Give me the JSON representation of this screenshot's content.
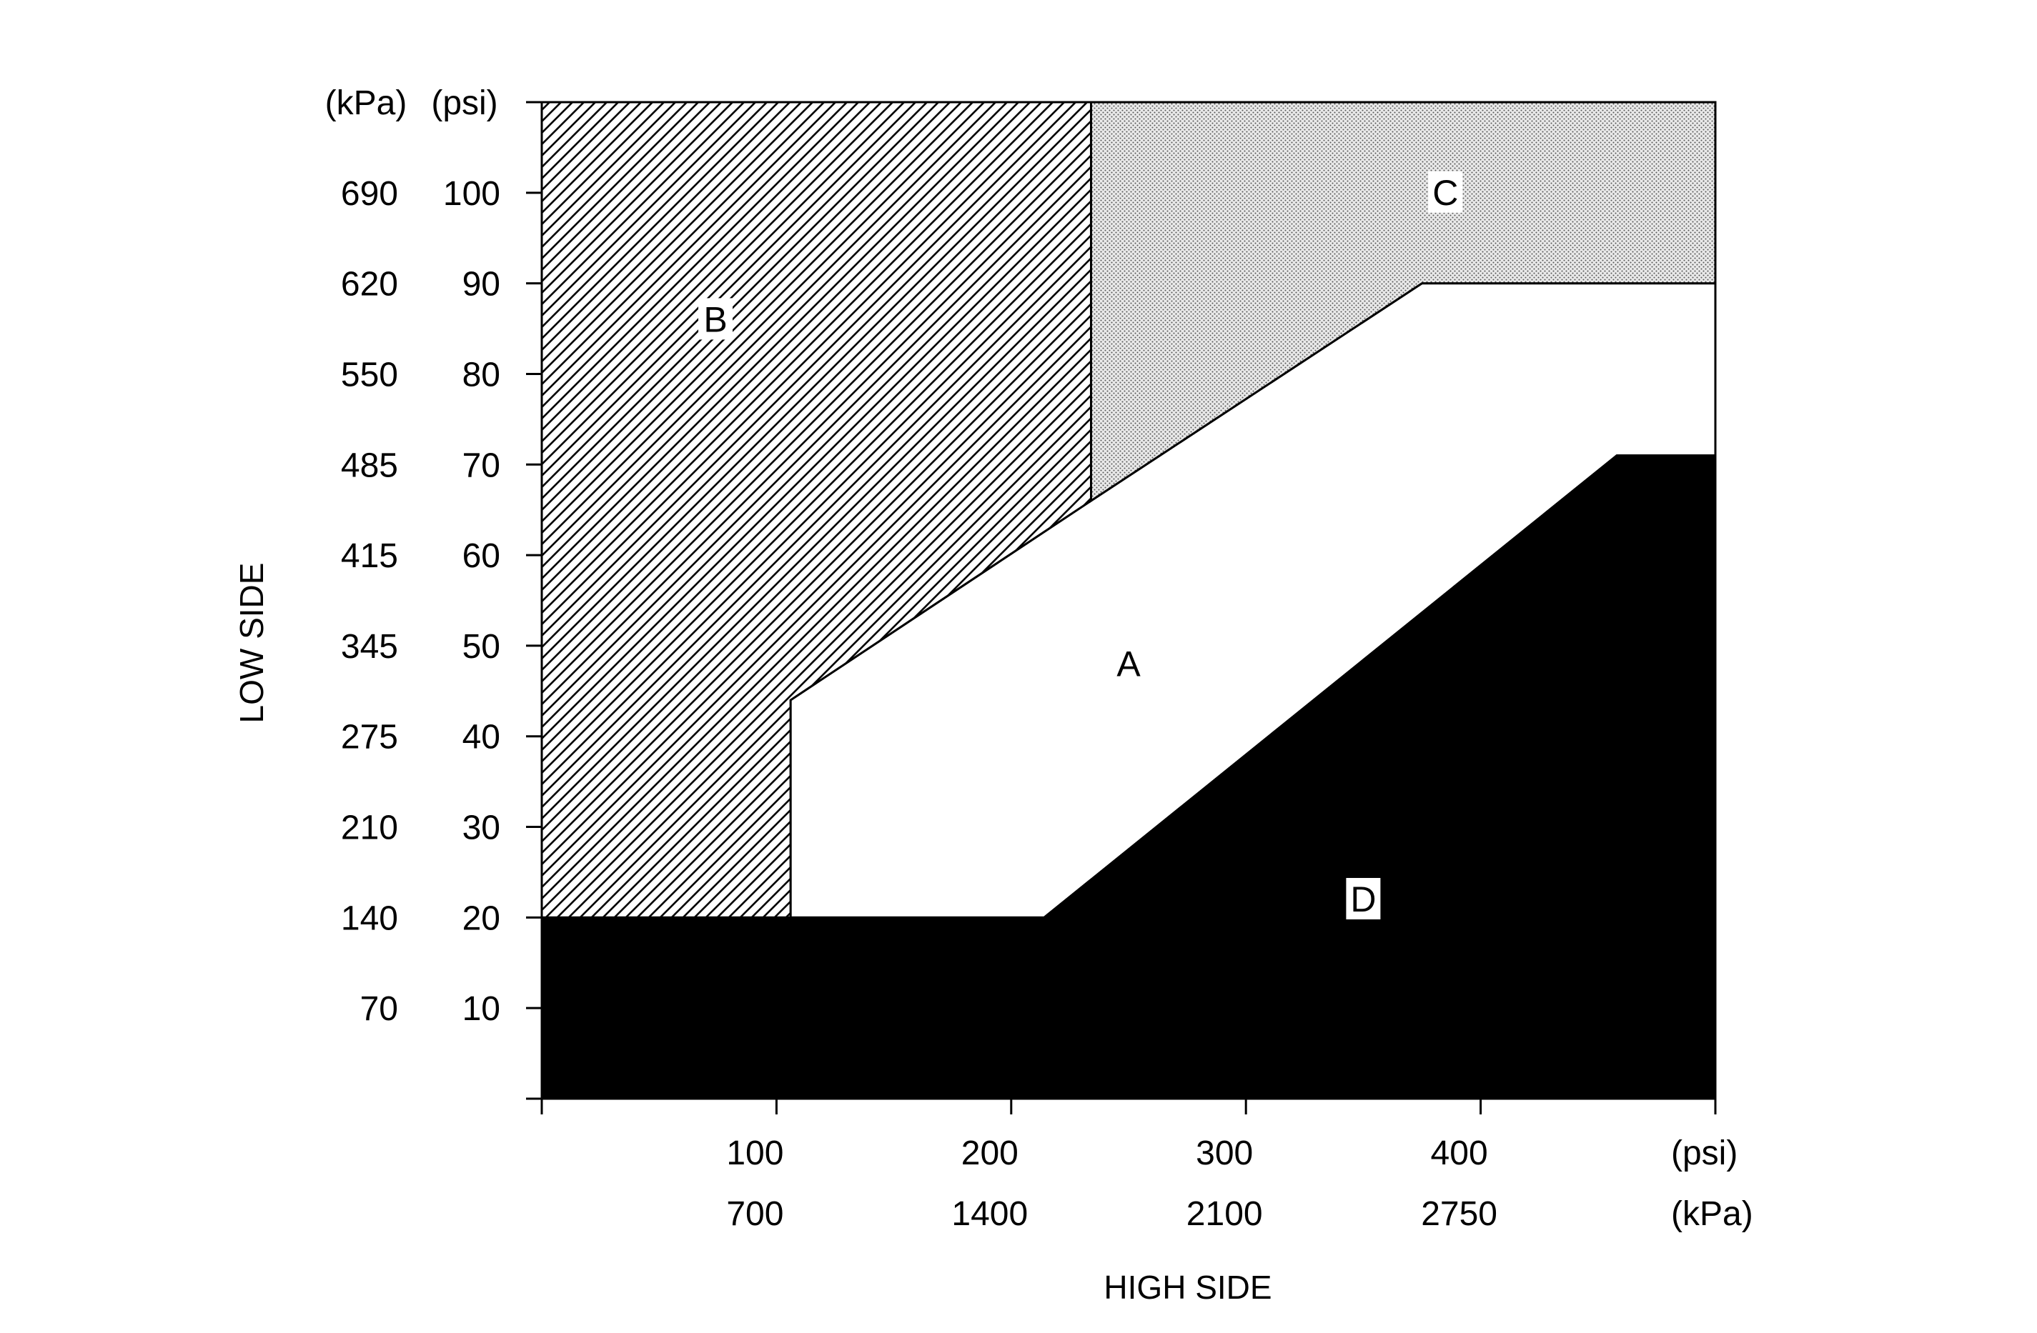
{
  "chart_data": {
    "type": "area",
    "title": "",
    "xlabel": "HIGH SIDE",
    "ylabel": "LOW SIDE",
    "x_unit_primary": "(psi)",
    "x_unit_secondary": "(kPa)",
    "y_unit_primary": "(psi)",
    "y_unit_secondary": "(kPa)",
    "xlim": [
      0,
      500
    ],
    "ylim": [
      0,
      110
    ],
    "x_ticks": [
      {
        "value": 0,
        "psi": "",
        "kpa": ""
      },
      {
        "value": 100,
        "psi": "100",
        "kpa": "700"
      },
      {
        "value": 200,
        "psi": "200",
        "kpa": "1400"
      },
      {
        "value": 300,
        "psi": "300",
        "kpa": "2100"
      },
      {
        "value": 400,
        "psi": "400",
        "kpa": "2750"
      },
      {
        "value": 500,
        "psi": "",
        "kpa": ""
      }
    ],
    "y_ticks": [
      {
        "value": 0,
        "psi": "",
        "kpa": ""
      },
      {
        "value": 10,
        "psi": "10",
        "kpa": "70"
      },
      {
        "value": 20,
        "psi": "20",
        "kpa": "140"
      },
      {
        "value": 30,
        "psi": "30",
        "kpa": "210"
      },
      {
        "value": 40,
        "psi": "40",
        "kpa": "275"
      },
      {
        "value": 50,
        "psi": "50",
        "kpa": "345"
      },
      {
        "value": 60,
        "psi": "60",
        "kpa": "415"
      },
      {
        "value": 70,
        "psi": "70",
        "kpa": "485"
      },
      {
        "value": 80,
        "psi": "80",
        "kpa": "550"
      },
      {
        "value": 90,
        "psi": "90",
        "kpa": "620"
      },
      {
        "value": 100,
        "psi": "100",
        "kpa": "690"
      },
      {
        "value": 110,
        "psi": "",
        "kpa": ""
      }
    ],
    "regions": [
      {
        "label": "A",
        "fill": "white",
        "label_at": [
          250,
          48
        ],
        "points": [
          [
            106,
            20
          ],
          [
            214,
            20
          ],
          [
            458,
            71
          ],
          [
            500,
            71
          ],
          [
            500,
            90
          ],
          [
            375,
            90
          ],
          [
            234,
            66
          ],
          [
            106,
            44
          ]
        ]
      },
      {
        "label": "B",
        "fill": "hatch",
        "label_at": [
          74,
          86
        ],
        "points": [
          [
            0,
            20
          ],
          [
            106,
            20
          ],
          [
            106,
            44
          ],
          [
            234,
            66
          ],
          [
            234,
            110
          ],
          [
            0,
            110
          ]
        ]
      },
      {
        "label": "C",
        "fill": "dots",
        "label_at": [
          385,
          100
        ],
        "points": [
          [
            234,
            66
          ],
          [
            375,
            90
          ],
          [
            500,
            90
          ],
          [
            500,
            110
          ],
          [
            234,
            110
          ]
        ]
      },
      {
        "label": "D",
        "fill": "black",
        "label_at": [
          350,
          22
        ],
        "points": [
          [
            0,
            0
          ],
          [
            500,
            0
          ],
          [
            500,
            71
          ],
          [
            458,
            71
          ],
          [
            214,
            20
          ],
          [
            0,
            20
          ]
        ]
      }
    ],
    "grid": false,
    "legend": "none",
    "colors": {
      "ink": "#000000",
      "paper": "#ffffff",
      "dots": "#c8c8c8"
    }
  }
}
